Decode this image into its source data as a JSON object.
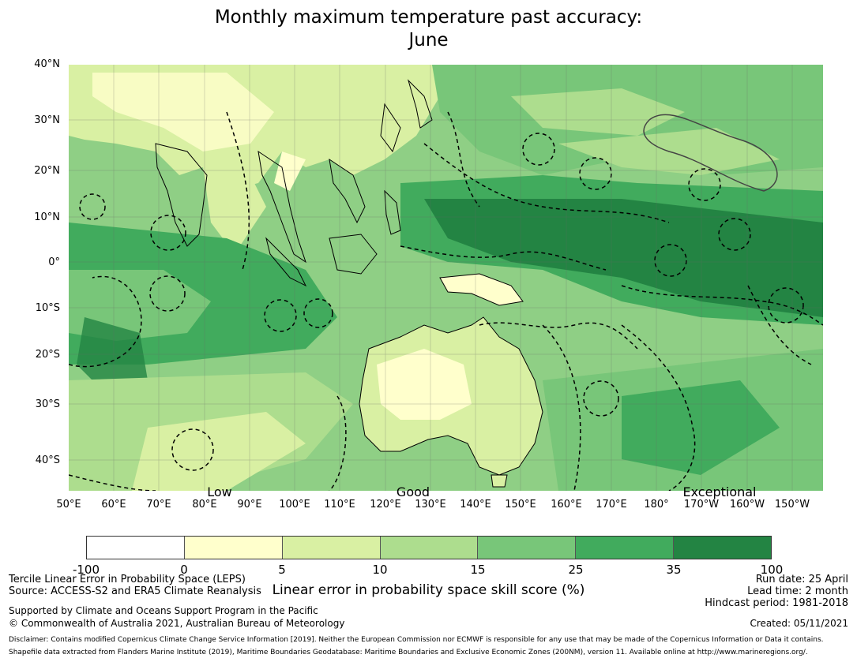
{
  "title": {
    "line1": "Monthly maximum temperature past accuracy:",
    "line2": "June"
  },
  "map": {
    "lat_labels": [
      "40°N",
      "30°N",
      "20°N",
      "10°N",
      "0°",
      "10°S",
      "20°S",
      "30°S",
      "40°S"
    ],
    "lon_labels": [
      "50°E",
      "60°E",
      "70°E",
      "80°E",
      "90°E",
      "100°E",
      "110°E",
      "120°E",
      "130°E",
      "140°E",
      "150°E",
      "160°E",
      "170°E",
      "180°",
      "170°W",
      "160°W",
      "150°W"
    ],
    "category_labels": {
      "low": "Low",
      "good": "Good",
      "exceptional": "Exceptional"
    }
  },
  "colorbar": {
    "ticks": [
      "-100",
      "0",
      "5",
      "10",
      "15",
      "25",
      "35",
      "100"
    ],
    "colors": [
      "#ffffff",
      "#ffffcc",
      "#d9f0a3",
      "#addd8e",
      "#78c679",
      "#41ab5d",
      "#238443"
    ],
    "label": "Linear error in probability space skill score (%)"
  },
  "footer": {
    "method": "Tercile Linear Error in Probability Space (LEPS)",
    "source": "Source: ACCESS-S2 and ERA5 Climate Reanalysis",
    "support": "Supported by Climate and Oceans Support Program in the Pacific",
    "copyright": "© Commonwealth of Australia 2021, Australian Bureau of Meteorology",
    "run_date": "Run date: 25 April",
    "lead_time": "Lead time: 2 month",
    "hindcast": "Hindcast period: 1981-2018",
    "created": "Created: 05/11/2021",
    "disclaimer": "Disclaimer: Contains modified Copernicus Climate Change Service Information [2019]. Neither the European Commission nor ECMWF is responsible for any use that may be made of the Copernicus Information or Data it contains.",
    "shapefile": "Shapefile data extracted from Flanders Marine Institute (2019), Maritime Boundaries Geodatabase: Maritime Boundaries and Exclusive Economic Zones (200NM), version 11. Available online at http://www.marineregions.org/."
  }
}
